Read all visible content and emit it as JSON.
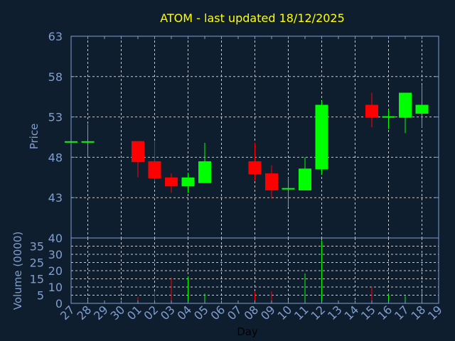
{
  "chart_data": [
    {
      "type": "candlestick",
      "title": "ATOM - last updated 18/12/2025",
      "ylabel": "Price",
      "xlabel": "Day",
      "ylim": [
        38,
        63
      ],
      "yticks": [
        43,
        48,
        53,
        58,
        63
      ],
      "grid": true,
      "x_labels": [
        "27",
        "28",
        "29",
        "30",
        "01",
        "02",
        "03",
        "04",
        "05",
        "06",
        "07",
        "08",
        "09",
        "10",
        "11",
        "12",
        "13",
        "14",
        "15",
        "16",
        "17",
        "18",
        "19"
      ],
      "candles": [
        {
          "day": "27",
          "open": 49.9,
          "high": 49.9,
          "low": 49.9,
          "close": 49.9
        },
        {
          "day": "28",
          "open": 49.9,
          "high": 52.1,
          "low": 48.0,
          "close": 49.9
        },
        {
          "day": "01",
          "open": 50.0,
          "high": 50.0,
          "low": 45.5,
          "close": 47.4
        },
        {
          "day": "02",
          "open": 47.5,
          "high": 50.0,
          "low": 45.0,
          "close": 45.4
        },
        {
          "day": "03",
          "open": 45.5,
          "high": 46.0,
          "low": 43.6,
          "close": 44.4
        },
        {
          "day": "04",
          "open": 44.4,
          "high": 46.1,
          "low": 43.6,
          "close": 45.5
        },
        {
          "day": "05",
          "open": 44.8,
          "high": 49.8,
          "low": 44.8,
          "close": 47.5
        },
        {
          "day": "08",
          "open": 47.5,
          "high": 49.8,
          "low": 45.1,
          "close": 45.9
        },
        {
          "day": "09",
          "open": 46.0,
          "high": 47.0,
          "low": 42.9,
          "close": 43.9
        },
        {
          "day": "10",
          "open": 44.1,
          "high": 45.5,
          "low": 41.9,
          "close": 44.1
        },
        {
          "day": "11",
          "open": 43.9,
          "high": 48.0,
          "low": 43.9,
          "close": 46.6
        },
        {
          "day": "12",
          "open": 46.5,
          "high": 55.0,
          "low": 45.9,
          "close": 54.5
        },
        {
          "day": "15",
          "open": 54.5,
          "high": 56.0,
          "low": 51.7,
          "close": 52.9
        },
        {
          "day": "16",
          "open": 53.0,
          "high": 53.9,
          "low": 51.5,
          "close": 53.0
        },
        {
          "day": "17",
          "open": 52.9,
          "high": 56.0,
          "low": 51.0,
          "close": 56.0
        },
        {
          "day": "18",
          "open": 53.4,
          "high": 56.9,
          "low": 51.7,
          "close": 54.5
        }
      ]
    },
    {
      "type": "bar",
      "ylabel": "Volume (0000)",
      "xlabel": "Day",
      "ylim": [
        0,
        40
      ],
      "yticks": [
        0,
        5,
        10,
        15,
        20,
        25,
        30,
        35,
        40
      ],
      "grid": true,
      "bars": [
        {
          "day": "28",
          "value": 2.7,
          "direction": "up"
        },
        {
          "day": "01",
          "value": 3.8,
          "direction": "down"
        },
        {
          "day": "02",
          "value": 7.4,
          "direction": "down"
        },
        {
          "day": "03",
          "value": 15.8,
          "direction": "down"
        },
        {
          "day": "04",
          "value": 16.5,
          "direction": "up"
        },
        {
          "day": "05",
          "value": 6.0,
          "direction": "up"
        },
        {
          "day": "08",
          "value": 7.0,
          "direction": "down"
        },
        {
          "day": "09",
          "value": 7.4,
          "direction": "down"
        },
        {
          "day": "10",
          "value": 2.2,
          "direction": "up"
        },
        {
          "day": "11",
          "value": 18.3,
          "direction": "up"
        },
        {
          "day": "12",
          "value": 38.5,
          "direction": "up"
        },
        {
          "day": "15",
          "value": 10.3,
          "direction": "down"
        },
        {
          "day": "16",
          "value": 6.0,
          "direction": "up"
        },
        {
          "day": "17",
          "value": 4.5,
          "direction": "up"
        },
        {
          "day": "18",
          "value": 7.8,
          "direction": "up"
        }
      ]
    }
  ],
  "colors": {
    "background": "#0f1e2f",
    "title": "#ffff00",
    "axis": "#7f9fcf",
    "grid": "#c8c8c8",
    "up": "#00ff00",
    "down": "#ff0000",
    "xlabel": "#000000"
  }
}
